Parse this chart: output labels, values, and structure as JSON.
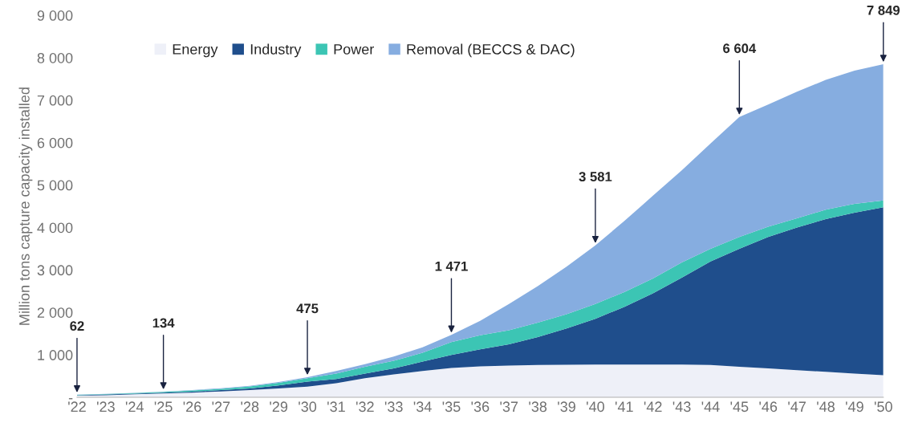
{
  "chart_data": {
    "type": "area",
    "stacked": true,
    "ylabel": "Million tons capture capacity installed",
    "categories": [
      "'22",
      "'23",
      "'24",
      "'25",
      "'26",
      "'27",
      "'28",
      "'29",
      "'30",
      "'31",
      "'32",
      "'33",
      "'34",
      "'35",
      "'36",
      "'37",
      "'38",
      "'39",
      "'40",
      "'41",
      "'42",
      "'43",
      "'44",
      "'45",
      "'46",
      "'47",
      "'48",
      "'49",
      "'50"
    ],
    "series": [
      {
        "name": "Energy",
        "color": "#eef0f8",
        "values": [
          40,
          50,
          70,
          90,
          110,
          140,
          170,
          210,
          250,
          330,
          450,
          540,
          620,
          690,
          730,
          750,
          760,
          765,
          770,
          770,
          770,
          770,
          760,
          720,
          680,
          640,
          600,
          560,
          520
        ]
      },
      {
        "name": "Industry",
        "color": "#1f4e8c",
        "values": [
          10,
          15,
          15,
          20,
          25,
          30,
          40,
          70,
          120,
          100,
          110,
          140,
          220,
          310,
          400,
          500,
          660,
          855,
          1080,
          1360,
          1680,
          2050,
          2440,
          2780,
          3100,
          3360,
          3600,
          3790,
          3960
        ]
      },
      {
        "name": "Power",
        "color": "#3cc5b4",
        "values": [
          8,
          10,
          15,
          18,
          25,
          30,
          45,
          60,
          80,
          130,
          160,
          180,
          210,
          300,
          330,
          330,
          340,
          340,
          350,
          350,
          350,
          360,
          300,
          280,
          240,
          220,
          220,
          210,
          160
        ]
      },
      {
        "name": "Removal (BECCS & DAC)",
        "color": "#86ade0",
        "values": [
          4,
          5,
          5,
          6,
          10,
          15,
          15,
          20,
          25,
          60,
          60,
          100,
          130,
          171,
          340,
          620,
          860,
          1120,
          1381,
          1670,
          1950,
          2170,
          2480,
          2824,
          2880,
          2980,
          3060,
          3140,
          3209
        ]
      }
    ],
    "ylim": [
      0,
      9000
    ],
    "yticks": [
      {
        "value": 0,
        "label": "-"
      },
      {
        "value": 1000,
        "label": "1 000"
      },
      {
        "value": 2000,
        "label": "2 000"
      },
      {
        "value": 3000,
        "label": "3 000"
      },
      {
        "value": 4000,
        "label": "4 000"
      },
      {
        "value": 5000,
        "label": "5 000"
      },
      {
        "value": 6000,
        "label": "6 000"
      },
      {
        "value": 7000,
        "label": "7 000"
      },
      {
        "value": 8000,
        "label": "8 000"
      },
      {
        "value": 9000,
        "label": "9 000"
      }
    ],
    "annotations": [
      {
        "text": "62",
        "x": "'22",
        "y": 62
      },
      {
        "text": "134",
        "x": "'25",
        "y": 134
      },
      {
        "text": "475",
        "x": "'30",
        "y": 475
      },
      {
        "text": "1 471",
        "x": "'35",
        "y": 1471
      },
      {
        "text": "3 581",
        "x": "'40",
        "y": 3581
      },
      {
        "text": "6 604",
        "x": "'45",
        "y": 6604
      },
      {
        "text": "7 849",
        "x": "'50",
        "y": 7849
      }
    ],
    "legend": "top left",
    "grid": false
  }
}
